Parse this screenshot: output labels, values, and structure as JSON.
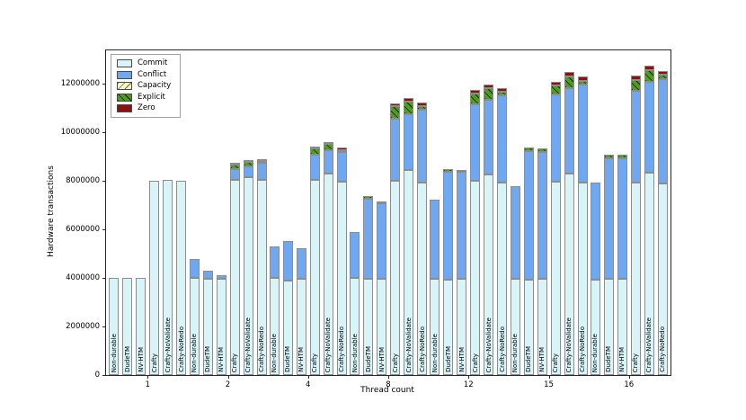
{
  "chart_data": {
    "type": "bar",
    "stacked": true,
    "xlabel": "Thread count",
    "ylabel": "Hardware transactions",
    "ylim": [
      0,
      13370000
    ],
    "yticks": [
      0,
      2000000,
      4000000,
      6000000,
      8000000,
      10000000,
      12000000
    ],
    "grid": false,
    "legend_position": "upper-left",
    "segment_order": [
      "commit",
      "conflict",
      "capacity",
      "explicit",
      "zero"
    ],
    "legend": [
      {
        "key": "commit",
        "label": "Commit",
        "color": "#d9f4f6",
        "hatch": "none"
      },
      {
        "key": "conflict",
        "label": "Conflict",
        "color": "#6fa8f0",
        "hatch": "none"
      },
      {
        "key": "capacity",
        "label": "Capacity",
        "color": "#f7f7c9",
        "hatch": "fwd"
      },
      {
        "key": "explicit",
        "label": "Explicit",
        "color": "#4f9c1e",
        "hatch": "back"
      },
      {
        "key": "zero",
        "label": "Zero",
        "color": "#8f1010",
        "hatch": "none"
      }
    ],
    "bar_labels": [
      "Non-durable",
      "DudeTM",
      "NV-HTM",
      "Crafty",
      "Crafty-NoValidate",
      "Crafty-NoRedo"
    ],
    "groups": [
      {
        "thread": "1",
        "bars": [
          {
            "label": "Non-durable",
            "values": [
              4000000,
              0,
              0,
              0,
              0
            ]
          },
          {
            "label": "DudeTM",
            "values": [
              4000000,
              0,
              0,
              0,
              0
            ]
          },
          {
            "label": "NV-HTM",
            "values": [
              4000000,
              0,
              0,
              0,
              0
            ]
          },
          {
            "label": "Crafty",
            "values": [
              8000000,
              0,
              0,
              0,
              0
            ]
          },
          {
            "label": "Crafty-NoValidate",
            "values": [
              8050000,
              0,
              0,
              0,
              0
            ]
          },
          {
            "label": "Crafty-NoRedo",
            "values": [
              8000000,
              0,
              0,
              0,
              0
            ]
          }
        ]
      },
      {
        "thread": "2",
        "bars": [
          {
            "label": "Non-durable",
            "values": [
              4000000,
              760000,
              0,
              0,
              0
            ]
          },
          {
            "label": "DudeTM",
            "values": [
              3950000,
              350000,
              0,
              0,
              0
            ]
          },
          {
            "label": "NV-HTM",
            "values": [
              3950000,
              170000,
              0,
              0,
              0
            ]
          },
          {
            "label": "Crafty",
            "values": [
              8050000,
              420000,
              0,
              190000,
              20000
            ]
          },
          {
            "label": "Crafty-NoValidate",
            "values": [
              8150000,
              440000,
              0,
              190000,
              30000
            ]
          },
          {
            "label": "Crafty-NoRedo",
            "values": [
              8050000,
              680000,
              0,
              90000,
              40000
            ]
          }
        ]
      },
      {
        "thread": "4",
        "bars": [
          {
            "label": "Non-durable",
            "values": [
              4000000,
              1300000,
              0,
              0,
              0
            ]
          },
          {
            "label": "DudeTM",
            "values": [
              3900000,
              1620000,
              0,
              0,
              0
            ]
          },
          {
            "label": "NV-HTM",
            "values": [
              3970000,
              1250000,
              0,
              0,
              0
            ]
          },
          {
            "label": "Crafty",
            "values": [
              8030000,
              1050000,
              0,
              260000,
              70000
            ]
          },
          {
            "label": "Crafty-NoValidate",
            "values": [
              8300000,
              960000,
              0,
              260000,
              70000
            ]
          },
          {
            "label": "Crafty-NoRedo",
            "values": [
              7950000,
              1230000,
              0,
              50000,
              110000
            ]
          }
        ]
      },
      {
        "thread": "8",
        "bars": [
          {
            "label": "Non-durable",
            "values": [
              4000000,
              1890000,
              0,
              0,
              0
            ]
          },
          {
            "label": "DudeTM",
            "values": [
              3970000,
              3290000,
              0,
              110000,
              0
            ]
          },
          {
            "label": "NV-HTM",
            "values": [
              3980000,
              3090000,
              0,
              70000,
              0
            ]
          },
          {
            "label": "Crafty",
            "values": [
              8000000,
              2560000,
              0,
              520000,
              110000
            ]
          },
          {
            "label": "Crafty-NoValidate",
            "values": [
              8440000,
              2300000,
              0,
              520000,
              150000
            ]
          },
          {
            "label": "Crafty-NoRedo",
            "values": [
              7930000,
              3000000,
              0,
              150000,
              150000
            ]
          }
        ]
      },
      {
        "thread": "12",
        "bars": [
          {
            "label": "Non-durable",
            "values": [
              3970000,
              3250000,
              0,
              0,
              0
            ]
          },
          {
            "label": "DudeTM",
            "values": [
              3930000,
              4440000,
              0,
              110000,
              0
            ]
          },
          {
            "label": "NV-HTM",
            "values": [
              3970000,
              4400000,
              0,
              70000,
              0
            ]
          },
          {
            "label": "Crafty",
            "values": [
              8000000,
              3150000,
              0,
              440000,
              150000
            ]
          },
          {
            "label": "Crafty-NoValidate",
            "values": [
              8260000,
              3070000,
              0,
              480000,
              150000
            ]
          },
          {
            "label": "Crafty-NoRedo",
            "values": [
              7930000,
              3600000,
              0,
              150000,
              130000
            ]
          }
        ]
      },
      {
        "thread": "15",
        "bars": [
          {
            "label": "Non-durable",
            "values": [
              3970000,
              3810000,
              0,
              0,
              0
            ]
          },
          {
            "label": "DudeTM",
            "values": [
              3940000,
              5280000,
              0,
              150000,
              0
            ]
          },
          {
            "label": "NV-HTM",
            "values": [
              3970000,
              5230000,
              0,
              130000,
              0
            ]
          },
          {
            "label": "Crafty",
            "values": [
              7960000,
              3590000,
              0,
              370000,
              170000
            ]
          },
          {
            "label": "Crafty-NoValidate",
            "values": [
              8300000,
              3520000,
              0,
              480000,
              190000
            ]
          },
          {
            "label": "Crafty-NoRedo",
            "values": [
              7930000,
              4040000,
              0,
              150000,
              190000
            ]
          }
        ]
      },
      {
        "thread": "16",
        "bars": [
          {
            "label": "Non-durable",
            "values": [
              3930000,
              4000000,
              0,
              0,
              0
            ]
          },
          {
            "label": "DudeTM",
            "values": [
              3970000,
              4950000,
              0,
              150000,
              0
            ]
          },
          {
            "label": "NV-HTM",
            "values": [
              3970000,
              4950000,
              0,
              150000,
              0
            ]
          },
          {
            "label": "Crafty",
            "values": [
              7930000,
              3780000,
              0,
              440000,
              190000
            ]
          },
          {
            "label": "Crafty-NoValidate",
            "values": [
              8330000,
              3740000,
              0,
              480000,
              190000
            ]
          },
          {
            "label": "Crafty-NoRedo",
            "values": [
              7890000,
              4300000,
              0,
              190000,
              150000
            ]
          }
        ]
      }
    ]
  }
}
